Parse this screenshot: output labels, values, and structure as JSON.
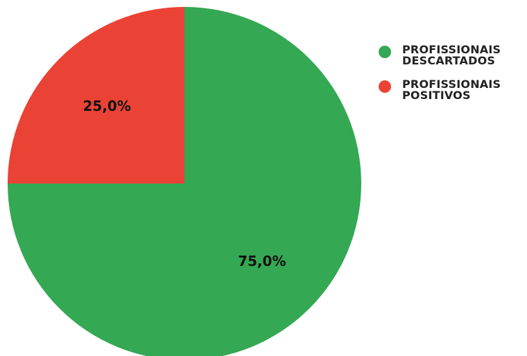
{
  "chart_data": {
    "type": "pie",
    "slices": [
      {
        "name": "PROFISSIONAIS\nDESCARTADOS",
        "value": 75.0,
        "label": "75,0%",
        "color": "#34a853"
      },
      {
        "name": "PROFISSIONAIS\nPOSITIVOS",
        "value": 25.0,
        "label": "25,0%",
        "color": "#ea4335"
      }
    ],
    "legend_position": "top-right",
    "start_angle": "12 o'clock, counter-clockwise order: red then green"
  },
  "legend": {
    "items": [
      {
        "label": "PROFISSIONAIS\nDESCARTADOS",
        "color": "#34a853"
      },
      {
        "label": "PROFISSIONAIS\nPOSITIVOS",
        "color": "#ea4335"
      }
    ]
  }
}
